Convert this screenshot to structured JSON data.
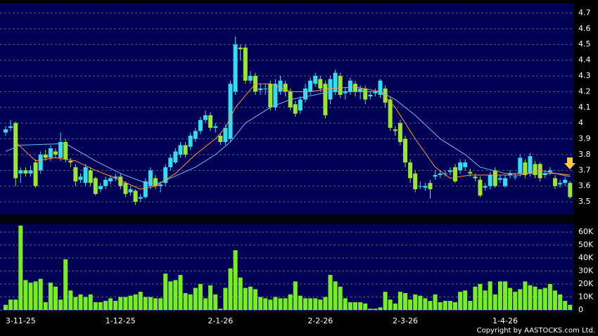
{
  "chart_data": [
    {
      "type": "candlestick",
      "categories": [
        null,
        null,
        null,
        "3-11-25",
        null,
        null,
        null,
        null,
        null,
        null,
        null,
        null,
        null,
        null,
        null,
        null,
        null,
        null,
        null,
        null,
        null,
        null,
        null,
        "1-12-25",
        null,
        null,
        null,
        null,
        null,
        null,
        null,
        null,
        null,
        null,
        null,
        null,
        null,
        null,
        null,
        null,
        null,
        null,
        null,
        "2-1-26",
        null,
        null,
        null,
        null,
        null,
        null,
        null,
        null,
        null,
        null,
        null,
        null,
        null,
        null,
        null,
        null,
        null,
        null,
        null,
        "2-2-26",
        null,
        null,
        null,
        null,
        null,
        null,
        null,
        null,
        null,
        null,
        null,
        null,
        null,
        null,
        null,
        null,
        "2-3-26",
        null,
        null,
        null,
        null,
        null,
        null,
        null,
        null,
        null,
        null,
        null,
        null,
        null,
        null,
        null,
        null,
        null,
        null,
        null,
        "1-4-26",
        null,
        null,
        null,
        null,
        null,
        null,
        null,
        null,
        null,
        null,
        null,
        null,
        null
      ],
      "open": [
        3.94,
        3.97,
        4.0,
        3.68,
        3.7,
        3.68,
        3.75,
        3.7,
        3.8,
        3.78,
        3.82,
        3.78,
        3.88,
        3.76,
        3.72,
        3.64,
        3.62,
        3.7,
        3.65,
        3.58,
        3.6,
        3.63,
        3.65,
        3.66,
        3.62,
        3.56,
        3.57,
        3.52,
        3.53,
        3.6,
        3.65,
        3.6,
        3.62,
        3.72,
        3.75,
        3.8,
        3.86,
        3.85,
        3.9,
        3.95,
        4.02,
        4.05,
        3.97,
        3.92,
        3.88,
        3.9,
        4.2,
        4.48,
        4.48,
        4.27,
        4.3,
        4.21,
        4.22,
        4.25,
        4.1,
        4.2,
        4.25,
        4.2,
        4.12,
        4.08,
        4.15,
        4.2,
        4.25,
        4.28,
        4.25,
        4.15,
        4.2,
        4.3,
        4.19,
        4.2,
        4.25,
        4.2,
        4.22,
        4.17,
        4.19,
        4.18,
        4.22,
        4.15,
        3.96,
        4.0,
        3.9,
        3.75,
        3.68,
        3.6,
        3.59,
        3.62,
        3.66,
        3.67,
        3.68,
        3.69,
        3.72,
        3.7,
        3.72,
        3.69,
        3.66,
        3.64,
        3.59,
        3.6,
        3.7,
        3.64,
        3.6,
        3.67,
        3.66,
        3.68,
        3.75,
        3.68,
        3.74,
        3.74,
        3.67,
        3.69,
        3.65,
        3.61,
        3.62,
        3.62
      ],
      "high": [
        3.98,
        4.02,
        4.01,
        3.72,
        3.72,
        3.73,
        3.77,
        3.82,
        3.83,
        3.86,
        3.84,
        3.94,
        3.9,
        3.78,
        3.74,
        3.68,
        3.74,
        3.72,
        3.66,
        3.62,
        3.66,
        3.67,
        3.68,
        3.68,
        3.63,
        3.6,
        3.58,
        3.55,
        3.65,
        3.72,
        3.67,
        3.63,
        3.74,
        3.8,
        3.84,
        3.88,
        3.88,
        3.94,
        3.97,
        4.04,
        4.08,
        4.07,
        4.0,
        3.94,
        3.99,
        4.27,
        4.55,
        4.5,
        4.5,
        4.33,
        4.32,
        4.25,
        4.25,
        4.27,
        4.28,
        4.3,
        4.27,
        4.22,
        4.14,
        4.17,
        4.25,
        4.29,
        4.32,
        4.3,
        4.27,
        4.3,
        4.34,
        4.32,
        4.23,
        4.29,
        4.27,
        4.24,
        4.24,
        4.2,
        4.22,
        4.28,
        4.24,
        4.17,
        3.98,
        4.02,
        3.92,
        3.77,
        3.7,
        3.63,
        3.62,
        3.64,
        3.7,
        3.7,
        3.7,
        3.72,
        3.74,
        3.77,
        3.77,
        3.71,
        3.68,
        3.66,
        3.62,
        3.69,
        3.72,
        3.67,
        3.67,
        3.7,
        3.68,
        3.8,
        3.77,
        3.81,
        3.76,
        3.75,
        3.7,
        3.72,
        3.67,
        3.64,
        3.66,
        3.63
      ],
      "low": [
        3.92,
        3.95,
        3.6,
        3.62,
        3.66,
        3.66,
        3.59,
        3.68,
        3.76,
        3.76,
        3.78,
        3.76,
        3.75,
        3.72,
        3.6,
        3.62,
        3.6,
        3.6,
        3.54,
        3.56,
        3.58,
        3.61,
        3.63,
        3.58,
        3.53,
        3.54,
        3.48,
        3.5,
        3.52,
        3.58,
        3.58,
        3.56,
        3.6,
        3.7,
        3.74,
        3.78,
        3.78,
        3.83,
        3.88,
        3.93,
        4.0,
        3.95,
        3.94,
        3.86,
        3.86,
        3.88,
        4.18,
        4.4,
        4.25,
        4.25,
        4.18,
        4.18,
        4.18,
        4.08,
        4.08,
        4.18,
        4.17,
        4.08,
        4.04,
        4.06,
        4.13,
        4.18,
        4.23,
        4.2,
        4.03,
        4.12,
        4.18,
        4.16,
        4.15,
        4.18,
        4.17,
        4.15,
        4.12,
        4.15,
        4.17,
        4.16,
        4.1,
        3.95,
        3.92,
        3.86,
        3.72,
        3.62,
        3.56,
        3.58,
        3.57,
        3.52,
        3.64,
        3.65,
        3.66,
        3.67,
        3.62,
        3.68,
        3.7,
        3.66,
        3.63,
        3.53,
        3.57,
        3.58,
        3.59,
        3.62,
        3.59,
        3.65,
        3.64,
        3.66,
        3.65,
        3.66,
        3.65,
        3.63,
        3.65,
        3.67,
        3.58,
        3.59,
        3.6,
        3.52
      ],
      "close": [
        3.96,
        3.98,
        3.65,
        3.7,
        3.68,
        3.7,
        3.6,
        3.8,
        3.78,
        3.84,
        3.8,
        3.88,
        3.77,
        3.75,
        3.63,
        3.66,
        3.72,
        3.62,
        3.55,
        3.6,
        3.64,
        3.65,
        3.66,
        3.6,
        3.55,
        3.58,
        3.5,
        3.53,
        3.63,
        3.7,
        3.6,
        3.61,
        3.72,
        3.78,
        3.82,
        3.86,
        3.8,
        3.92,
        3.95,
        4.02,
        4.05,
        3.97,
        3.98,
        3.88,
        3.97,
        4.25,
        4.5,
        4.47,
        4.27,
        4.3,
        4.2,
        4.22,
        4.22,
        4.1,
        4.25,
        4.27,
        4.2,
        4.1,
        4.06,
        4.15,
        4.22,
        4.27,
        4.3,
        4.22,
        4.05,
        4.28,
        4.32,
        4.18,
        4.2,
        4.27,
        4.2,
        4.22,
        4.15,
        4.18,
        4.2,
        4.27,
        4.13,
        3.97,
        3.95,
        3.88,
        3.75,
        3.65,
        3.58,
        3.6,
        3.6,
        3.58,
        3.67,
        3.68,
        3.68,
        3.7,
        3.63,
        3.75,
        3.75,
        3.68,
        3.65,
        3.54,
        3.6,
        3.67,
        3.6,
        3.65,
        3.65,
        3.68,
        3.66,
        3.78,
        3.67,
        3.79,
        3.67,
        3.65,
        3.68,
        3.7,
        3.6,
        3.62,
        3.64,
        3.53
      ],
      "up_color": "#33ddee",
      "down_color": "#99e633",
      "lines": [
        {
          "color": "#77bbee",
          "x": [
            0,
            3,
            12,
            18,
            23,
            28,
            31,
            33,
            38,
            42,
            45,
            48,
            53,
            57,
            62,
            65,
            72,
            75,
            78,
            82,
            87,
            92,
            95,
            100,
            105,
            110,
            113
          ],
          "values": [
            3.82,
            3.86,
            3.87,
            3.76,
            3.68,
            3.62,
            3.62,
            3.65,
            3.72,
            3.8,
            3.88,
            4.0,
            4.1,
            4.15,
            4.18,
            4.2,
            4.2,
            4.2,
            4.15,
            4.05,
            3.9,
            3.8,
            3.72,
            3.68,
            3.68,
            3.68,
            3.66
          ]
        },
        {
          "color": "#ff9933",
          "x": [
            2,
            6,
            10,
            14,
            18,
            22,
            27,
            30,
            34,
            38,
            42,
            44,
            46,
            50,
            53,
            57,
            61,
            65,
            70,
            75,
            78,
            82,
            86,
            89,
            93,
            98,
            103,
            107,
            110,
            113
          ],
          "values": [
            3.88,
            3.76,
            3.78,
            3.76,
            3.7,
            3.65,
            3.58,
            3.6,
            3.68,
            3.8,
            3.9,
            3.97,
            4.1,
            4.25,
            4.25,
            4.2,
            4.2,
            4.22,
            4.23,
            4.2,
            4.1,
            3.9,
            3.72,
            3.65,
            3.67,
            3.67,
            3.67,
            3.7,
            3.68,
            3.67
          ]
        }
      ],
      "ylim": [
        3.42,
        4.76
      ],
      "yticks": [
        3.5,
        3.6,
        3.7,
        3.8,
        3.9,
        4,
        4.1,
        4.2,
        4.3,
        4.4,
        4.5,
        4.6,
        4.7
      ],
      "grid": true
    },
    {
      "type": "bar",
      "values": [
        4000,
        8000,
        8000,
        65000,
        23000,
        21000,
        22000,
        24000,
        6000,
        21000,
        18000,
        8000,
        39000,
        15000,
        10000,
        12000,
        10000,
        12000,
        6000,
        6000,
        7000,
        9000,
        7000,
        10000,
        10000,
        11000,
        12000,
        14000,
        10000,
        10000,
        9000,
        9000,
        28000,
        22000,
        23000,
        27000,
        13000,
        12000,
        17000,
        20000,
        9000,
        19000,
        12000,
        1000,
        17000,
        32000,
        46000,
        25000,
        17000,
        18000,
        16000,
        10000,
        9000,
        8000,
        10000,
        9000,
        9000,
        12000,
        22000,
        11000,
        9000,
        9000,
        9000,
        8000,
        10000,
        27000,
        22000,
        18000,
        9000,
        6000,
        6000,
        6000,
        5000,
        1000,
        1000,
        2000,
        14000,
        8000,
        5000,
        14000,
        13000,
        8000,
        12000,
        11000,
        9000,
        7000,
        12000,
        6000,
        7000,
        7000,
        6000,
        14000,
        15000,
        7000,
        18000,
        20000,
        15000,
        22000,
        12000,
        22000,
        22000,
        17000,
        14000,
        16000,
        22000,
        19000,
        18000,
        16000,
        17000,
        20000,
        15000,
        12000,
        7000,
        4000
      ],
      "color": "#77ee22",
      "ylim": [
        0,
        66000
      ],
      "yticks": [
        0,
        {
          "value": 10000,
          "label": "10K"
        },
        {
          "value": 20000,
          "label": "20K"
        },
        {
          "value": 30000,
          "label": "30K"
        },
        {
          "value": 40000,
          "label": "40K"
        },
        {
          "value": 50000,
          "label": "50K"
        },
        {
          "value": 60000,
          "label": "60K"
        }
      ],
      "grid": true
    }
  ],
  "copyright": "Copyright by AASTOCKS.com Ltd."
}
